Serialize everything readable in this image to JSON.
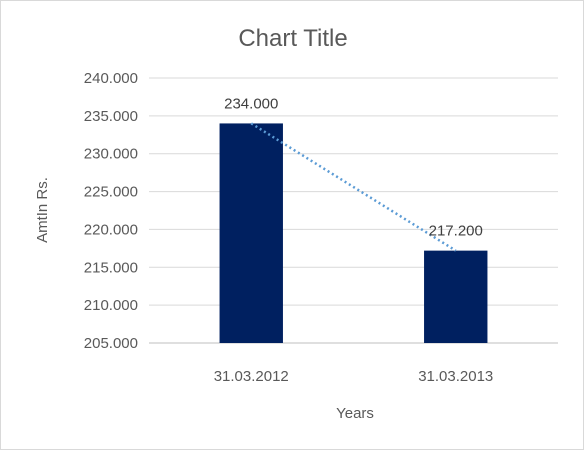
{
  "chart_data": {
    "type": "bar",
    "title": "Chart Title",
    "xlabel": "Years",
    "ylabel": "AmtIn Rs.",
    "categories": [
      "31.03.2012",
      "31.03.2013"
    ],
    "values": [
      234.0,
      217.2
    ],
    "data_labels": [
      "234.000",
      "217.200"
    ],
    "ylim": [
      205,
      240
    ],
    "yticks": [
      205,
      210,
      215,
      220,
      225,
      230,
      235,
      240
    ],
    "ytick_labels": [
      "205.000",
      "210.000",
      "215.000",
      "220.000",
      "225.000",
      "230.000",
      "235.000",
      "240.000"
    ],
    "bar_color": "#002060",
    "trendline": {
      "type": "linear",
      "style": "dotted",
      "color": "#5b9bd5"
    },
    "grid": true,
    "legend": "none"
  }
}
